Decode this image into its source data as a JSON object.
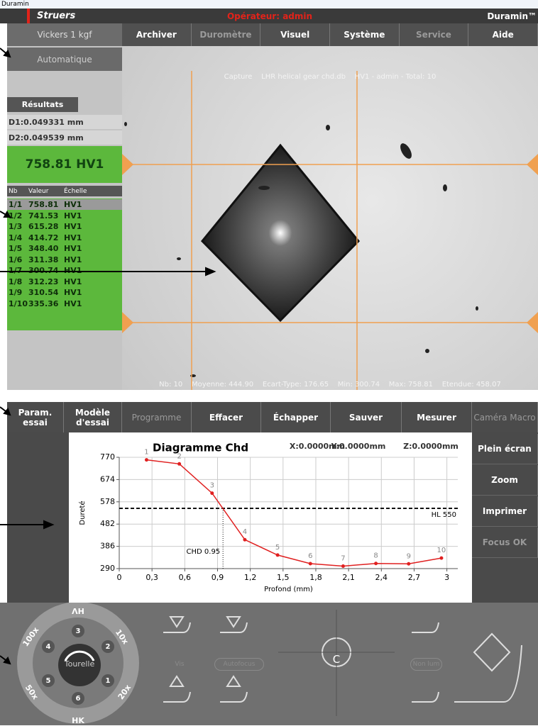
{
  "window_title": "Duramin",
  "header": {
    "brand": "Struers",
    "operator": "Opérateur: admin",
    "product": "Duramin™"
  },
  "menu": {
    "method": "Vickers 1 kgf",
    "items": [
      "Archiver",
      "Duromètre",
      "Visuel",
      "Système",
      "Service",
      "Aide"
    ]
  },
  "left_panel": {
    "mode": "Automatique",
    "tab": "Résultats",
    "d1": "D1:0.049331 mm",
    "d2": "D2:0.049539 mm",
    "result": "758.81 HV1"
  },
  "results_table": {
    "columns": [
      "Nb",
      "Valeur",
      "Échelle"
    ],
    "rows": [
      [
        "1/1",
        "758.81",
        "HV1"
      ],
      [
        "1/2",
        "741.53",
        "HV1"
      ],
      [
        "1/3",
        "615.28",
        "HV1"
      ],
      [
        "1/4",
        "414.72",
        "HV1"
      ],
      [
        "1/5",
        "348.40",
        "HV1"
      ],
      [
        "1/6",
        "311.38",
        "HV1"
      ],
      [
        "1/7",
        "300.74",
        "HV1"
      ],
      [
        "1/8",
        "312.23",
        "HV1"
      ],
      [
        "1/9",
        "310.54",
        "HV1"
      ],
      [
        "1/10",
        "335.36",
        "HV1"
      ]
    ]
  },
  "image": {
    "caption_top": "Capture    LHR helical gear chd.db    HV1 - admin - Total: 10",
    "caption_bottom": "Nb: 10    Moyenne: 444.90    Ecart-Type: 176.65    Min: 300.74    Max: 758.81    Etendue: 458.07"
  },
  "toolbar": {
    "buttons": [
      "Param. essai",
      "Modèle d'essai",
      "Programme",
      "Effacer",
      "Échapper",
      "Sauver",
      "Mesurer",
      "Caméra Macro"
    ]
  },
  "side_buttons": [
    "Plein écran",
    "Zoom",
    "Imprimer",
    "Focus OK"
  ],
  "chart_data": {
    "type": "line",
    "title": "Diagramme Chd",
    "coordinates": [
      "X:0.0000mm",
      "Y:0.0000mm",
      "Z:0.0000mm"
    ],
    "y_label": "Dureté",
    "x_label": "Profond (mm)",
    "x": [
      0.25,
      0.55,
      0.85,
      1.15,
      1.45,
      1.75,
      2.05,
      2.35,
      2.65,
      2.95
    ],
    "values": [
      758.81,
      741.53,
      615.28,
      414.72,
      348.4,
      311.38,
      300.74,
      312.23,
      310.54,
      335.36
    ],
    "point_labels": [
      "1",
      "2",
      "3",
      "4",
      "5",
      "6",
      "7",
      "8",
      "9",
      "10"
    ],
    "color": "#e02020",
    "xlim": [
      0,
      3.1
    ],
    "xticks": [
      0,
      {
        "value": 0.3,
        "label": "0,3"
      },
      {
        "value": 0.6,
        "label": "0,6"
      },
      {
        "value": 0.9,
        "label": "0,9"
      },
      {
        "value": 1.2,
        "label": "1,2"
      },
      {
        "value": 1.5,
        "label": "1,5"
      },
      {
        "value": 1.8,
        "label": "1,8"
      },
      {
        "value": 2.1,
        "label": "2,1"
      },
      {
        "value": 2.4,
        "label": "2,4"
      },
      {
        "value": 2.7,
        "label": "2,7"
      },
      3
    ],
    "ylim": [
      290,
      770
    ],
    "yticks": [
      290,
      386,
      482,
      578,
      674,
      770
    ],
    "grid": true,
    "threshold": {
      "value": 550,
      "label": "HL 550"
    },
    "chd": {
      "value": 0.95,
      "label": "CHD 0.95"
    }
  },
  "control_panel": {
    "turret_labels": [
      "ΛH",
      "10x",
      "20x",
      "HK",
      "50x",
      "100x"
    ],
    "positions": [
      "1",
      "2",
      "3",
      "4",
      "5",
      "6"
    ],
    "turret": "Tourelle",
    "buttons": [
      "Vis",
      "Autofocus",
      "C",
      "Non lum"
    ]
  }
}
